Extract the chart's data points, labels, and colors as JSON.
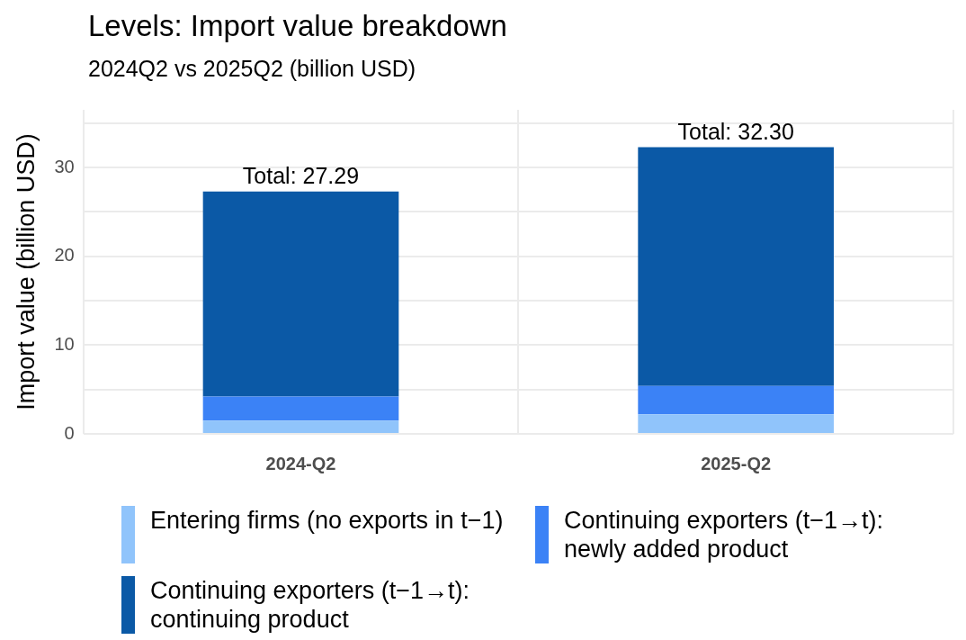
{
  "chart_data": {
    "type": "bar",
    "title": "Levels: Import value breakdown",
    "subtitle": "2024Q2 vs 2025Q2 (billion USD)",
    "ylabel": "Import value (billion USD)",
    "categories": [
      "2024-Q2",
      "2025-Q2"
    ],
    "stacked": true,
    "series": [
      {
        "name": "Entering firms (no exports in t−1)",
        "color": "#90c4fb",
        "values": [
          1.5,
          2.2
        ]
      },
      {
        "name": "Continuing exporters (t−1→t): newly added product",
        "color": "#3b82f6",
        "values": [
          2.7,
          3.2
        ]
      },
      {
        "name": "Continuing exporters (t−1→t): continuing product",
        "color": "#0b59a6",
        "values": [
          23.1,
          26.9
        ]
      }
    ],
    "totals": [
      "Total: 27.29",
      "Total: 32.30"
    ],
    "ylim": [
      0,
      36.5
    ],
    "yticks": [
      0,
      {
        "value": 5,
        "label": null
      },
      10,
      {
        "value": 15,
        "label": null
      },
      20,
      {
        "value": 25,
        "label": null
      },
      30,
      {
        "value": 35,
        "label": null
      }
    ],
    "grid": true,
    "legend": "bottom"
  }
}
